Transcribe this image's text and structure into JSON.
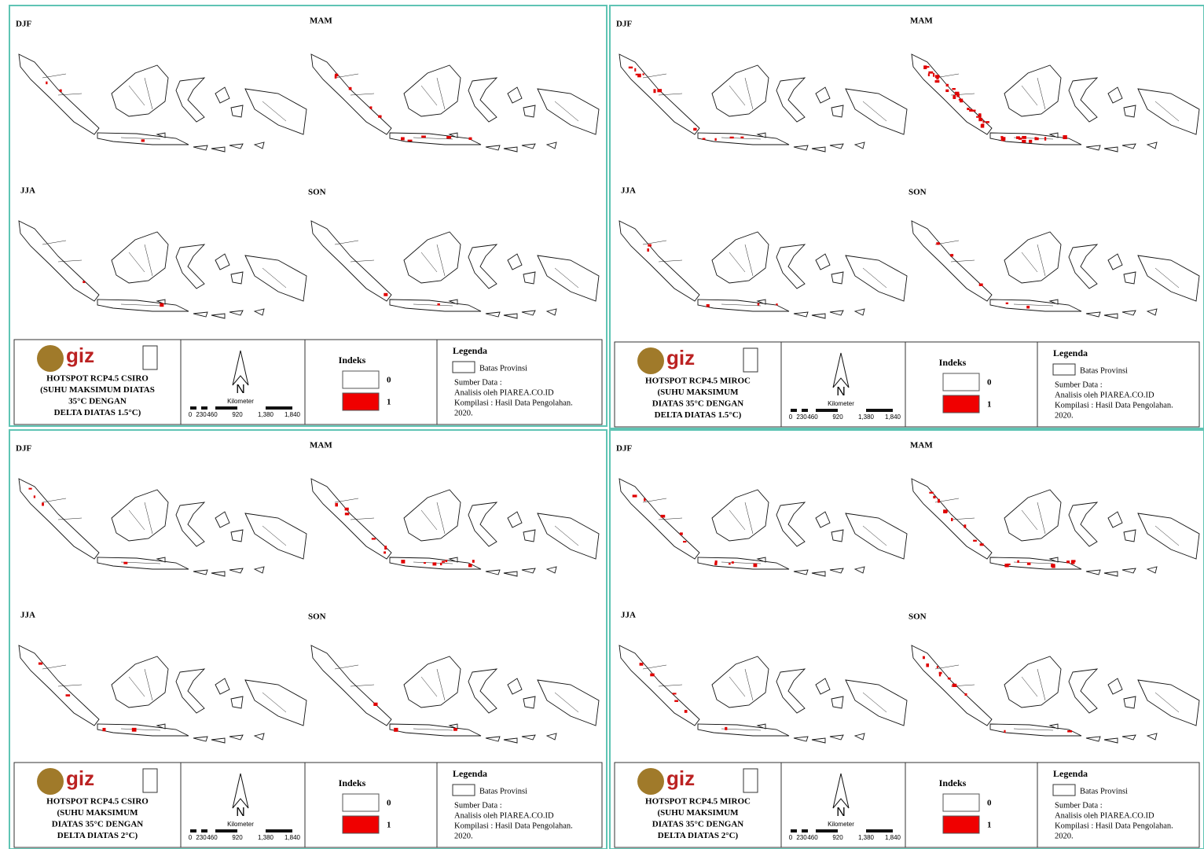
{
  "panels": [
    {
      "seasons": [
        "DJF",
        "MAM",
        "JJA",
        "SON"
      ],
      "title": [
        "HOTSPOT RCP4.5 CSIRO",
        "(SUHU MAKSIMUM DIATAS",
        "35°C DENGAN",
        "DELTA DIATAS 1.5°C)"
      ]
    },
    {
      "seasons": [
        "DJF",
        "MAM",
        "JJA",
        "SON"
      ],
      "title": [
        "HOTSPOT RCP4.5 MIROC",
        "(SUHU MAKSIMUM",
        "DIATAS 35°C DENGAN",
        "DELTA DIATAS 1.5°C)"
      ]
    },
    {
      "seasons": [
        "DJF",
        "MAM",
        "JJA",
        "SON"
      ],
      "title": [
        "HOTSPOT RCP4.5 CSIRO",
        "(SUHU MAKSIMUM",
        "DIATAS 35°C DENGAN",
        "DELTA DIATAS 2°C)"
      ]
    },
    {
      "seasons": [
        "DJF",
        "MAM",
        "JJA",
        "SON"
      ],
      "title": [
        "HOTSPOT RCP4.5 MIROC",
        "(SUHU MAKSIMUM",
        "DIATAS 35°C DENGAN",
        "DELTA DIATAS 2°C)"
      ]
    }
  ],
  "logo": "giz",
  "north": "N",
  "scale": {
    "unit": "Kilometer",
    "labels": [
      "0",
      "230",
      "460",
      "920",
      "1,380",
      "1,840"
    ]
  },
  "index": {
    "title": "Indeks",
    "classes": [
      "0",
      "1"
    ]
  },
  "legend": {
    "title": "Legenda",
    "item": "Batas Provinsi",
    "source": [
      "Sumber Data :",
      "Analisis oleh PIAREA.CO.ID",
      "Kompilasi : Hasil Data Pengolahan.",
      "2020."
    ]
  }
}
